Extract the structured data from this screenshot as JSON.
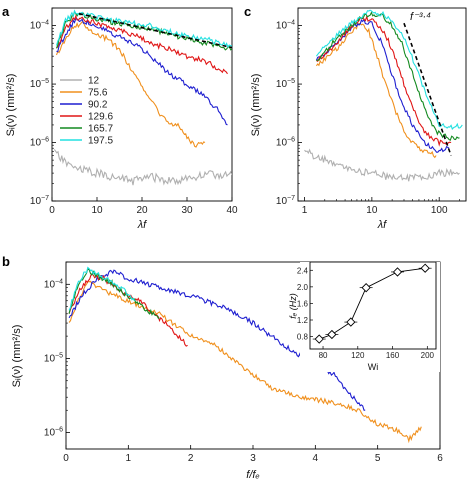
{
  "chart_data": [
    {
      "id": "a",
      "panel_label": "a",
      "type": "line",
      "xscale": "linear",
      "yscale": "log",
      "xlim": [
        0,
        40
      ],
      "ylim": [
        1e-07,
        0.0002
      ],
      "xticks": [
        "0",
        "10",
        "20",
        "30",
        "40"
      ],
      "yticks": [
        "10−7",
        "10−6",
        "10−5",
        "10−4"
      ],
      "xlabel": "λf",
      "ylabel": "Sᵢ(ν) (mm²/s)",
      "legend_position": "left-middle",
      "series": [
        {
          "name": "12",
          "color": "#b0b0b0",
          "points": [
            [
              0.5,
              7e-07
            ],
            [
              3,
              4.5e-07
            ],
            [
              6,
              3.5e-07
            ],
            [
              10,
              3e-07
            ],
            [
              14,
              2.5e-07
            ],
            [
              18,
              2.2e-07
            ],
            [
              22,
              2.6e-07
            ],
            [
              26,
              2.2e-07
            ],
            [
              30,
              2.4e-07
            ],
            [
              34,
              2.8e-07
            ],
            [
              38,
              2.8e-07
            ],
            [
              40,
              2.8e-07
            ]
          ]
        },
        {
          "name": "75.6",
          "color": "#f0901e",
          "points": [
            [
              1,
              3e-05
            ],
            [
              3,
              6e-05
            ],
            [
              5,
              0.0001
            ],
            [
              7,
              0.00011
            ],
            [
              9,
              8e-05
            ],
            [
              12,
              6e-05
            ],
            [
              15,
              4e-05
            ],
            [
              18,
              1.5e-05
            ],
            [
              21,
              7e-06
            ],
            [
              24,
              3e-06
            ],
            [
              26,
              2e-06
            ],
            [
              28,
              2e-06
            ],
            [
              30,
              1.2e-06
            ],
            [
              32,
              9e-07
            ],
            [
              34,
              1e-06
            ]
          ]
        },
        {
          "name": "90.2",
          "color": "#1f1fd0",
          "points": [
            [
              1,
              3.5e-05
            ],
            [
              3,
              7e-05
            ],
            [
              5,
              0.00012
            ],
            [
              7,
              0.00012
            ],
            [
              10,
              0.0001
            ],
            [
              14,
              7e-05
            ],
            [
              18,
              5e-05
            ],
            [
              22,
              3e-05
            ],
            [
              26,
              1.5e-05
            ],
            [
              30,
              1e-05
            ],
            [
              34,
              6e-06
            ],
            [
              37,
              3.5e-06
            ],
            [
              39,
              2e-06
            ]
          ]
        },
        {
          "name": "129.6",
          "color": "#e01616",
          "points": [
            [
              1,
              4e-05
            ],
            [
              3,
              9e-05
            ],
            [
              5,
              0.00014
            ],
            [
              7,
              0.00013
            ],
            [
              10,
              0.00011
            ],
            [
              14,
              9e-05
            ],
            [
              18,
              7e-05
            ],
            [
              22,
              5e-05
            ],
            [
              26,
              4e-05
            ],
            [
              30,
              3e-05
            ],
            [
              34,
              2.5e-05
            ],
            [
              37,
              1.8e-05
            ],
            [
              39,
              1.5e-05
            ]
          ]
        },
        {
          "name": "165.7",
          "color": "#148a20",
          "points": [
            [
              1,
              4e-05
            ],
            [
              3,
              0.00011
            ],
            [
              5,
              0.00016
            ],
            [
              7,
              0.00015
            ],
            [
              10,
              0.00013
            ],
            [
              14,
              0.00011
            ],
            [
              18,
              0.0001
            ],
            [
              22,
              9e-05
            ],
            [
              26,
              7e-05
            ],
            [
              30,
              6e-05
            ],
            [
              34,
              5e-05
            ],
            [
              37,
              4.5e-05
            ],
            [
              40,
              4e-05
            ]
          ]
        },
        {
          "name": "197.5",
          "color": "#22e0e0",
          "points": [
            [
              1,
              4.5e-05
            ],
            [
              3,
              0.00012
            ],
            [
              5,
              0.00017
            ],
            [
              7,
              0.00016
            ],
            [
              10,
              0.00014
            ],
            [
              14,
              0.00012
            ],
            [
              18,
              0.00011
            ],
            [
              22,
              0.0001
            ],
            [
              26,
              8e-05
            ],
            [
              30,
              6.5e-05
            ],
            [
              34,
              6e-05
            ],
            [
              37,
              5e-05
            ],
            [
              40,
              4.5e-05
            ]
          ]
        }
      ],
      "fit_line": {
        "style": "dashed",
        "color": "#000000",
        "points": [
          [
            6,
            0.00016
          ],
          [
            40,
            4.2e-05
          ]
        ]
      }
    },
    {
      "id": "c",
      "panel_label": "c",
      "type": "line",
      "xscale": "log",
      "yscale": "log",
      "xlim": [
        0.8,
        250
      ],
      "ylim": [
        1e-07,
        0.0002
      ],
      "xticks": [
        "1",
        "10",
        "100"
      ],
      "yticks": [
        "10−7",
        "10−6",
        "10−5",
        "10−4"
      ],
      "xlabel": "λf",
      "ylabel": "Sᵢ(ν) (mm²/s)",
      "annotation": "f⁻³·⁴",
      "series": [
        {
          "name": "12",
          "color": "#b0b0b0",
          "points": [
            [
              1,
              7e-07
            ],
            [
              2,
              5e-07
            ],
            [
              5,
              3.5e-07
            ],
            [
              10,
              3e-07
            ],
            [
              20,
              2.5e-07
            ],
            [
              50,
              2.5e-07
            ],
            [
              100,
              3e-07
            ],
            [
              200,
              3e-07
            ]
          ]
        },
        {
          "name": "75.6",
          "color": "#f0901e",
          "points": [
            [
              1.5,
              2e-05
            ],
            [
              3,
              4e-05
            ],
            [
              5,
              8e-05
            ],
            [
              7,
              0.00011
            ],
            [
              9,
              8e-05
            ],
            [
              12,
              3e-05
            ],
            [
              16,
              1e-05
            ],
            [
              20,
              5e-06
            ],
            [
              25,
              2.5e-06
            ],
            [
              30,
              1.5e-06
            ],
            [
              40,
              1e-06
            ],
            [
              60,
              7e-07
            ],
            [
              90,
              6e-07
            ]
          ]
        },
        {
          "name": "90.2",
          "color": "#1f1fd0",
          "points": [
            [
              1.5,
              2.5e-05
            ],
            [
              3,
              5e-05
            ],
            [
              5,
              9e-05
            ],
            [
              7,
              0.00012
            ],
            [
              10,
              0.00011
            ],
            [
              14,
              5e-05
            ],
            [
              18,
              2e-05
            ],
            [
              24,
              8e-06
            ],
            [
              30,
              4e-06
            ],
            [
              40,
              2e-06
            ],
            [
              60,
              1e-06
            ],
            [
              100,
              7e-07
            ],
            [
              140,
              8e-07
            ]
          ]
        },
        {
          "name": "129.6",
          "color": "#e01616",
          "points": [
            [
              1.5,
              2.5e-05
            ],
            [
              3,
              5e-05
            ],
            [
              5,
              0.0001
            ],
            [
              7,
              0.00014
            ],
            [
              11,
              0.00012
            ],
            [
              16,
              7e-05
            ],
            [
              22,
              3e-05
            ],
            [
              30,
              1e-05
            ],
            [
              40,
              4e-06
            ],
            [
              60,
              1.5e-06
            ],
            [
              100,
              1e-06
            ],
            [
              150,
              1e-06
            ]
          ]
        },
        {
          "name": "165.7",
          "color": "#148a20",
          "points": [
            [
              1.5,
              2.5e-05
            ],
            [
              3,
              6e-05
            ],
            [
              6,
              0.00012
            ],
            [
              9,
              0.00016
            ],
            [
              14,
              0.00015
            ],
            [
              20,
              0.0001
            ],
            [
              28,
              5e-05
            ],
            [
              40,
              1.5e-05
            ],
            [
              60,
              4e-06
            ],
            [
              90,
              1.5e-06
            ],
            [
              140,
              1.2e-06
            ],
            [
              200,
              1.2e-06
            ]
          ]
        },
        {
          "name": "197.5",
          "color": "#22e0e0",
          "points": [
            [
              1.5,
              3e-05
            ],
            [
              3,
              7e-05
            ],
            [
              6,
              0.00013
            ],
            [
              9,
              0.00017
            ],
            [
              14,
              0.00016
            ],
            [
              20,
              0.00012
            ],
            [
              30,
              6e-05
            ],
            [
              45,
              2e-05
            ],
            [
              70,
              5e-06
            ],
            [
              100,
              2e-06
            ],
            [
              150,
              1.8e-06
            ],
            [
              220,
              2e-06
            ]
          ]
        }
      ],
      "fit_line": {
        "style": "dashed",
        "color": "#000000",
        "points": [
          [
            30,
            0.00011
          ],
          [
            150,
            6e-07
          ]
        ]
      }
    },
    {
      "id": "b",
      "panel_label": "b",
      "type": "line",
      "xscale": "linear",
      "yscale": "log",
      "xlim": [
        0,
        6
      ],
      "ylim": [
        6e-07,
        0.0002
      ],
      "xticks": [
        "0",
        "1",
        "2",
        "3",
        "4",
        "5",
        "6"
      ],
      "yticks": [
        "10−6",
        "10−5",
        "10−4"
      ],
      "xlabel": "f/fₑ",
      "ylabel": "Sᵢ(ν) (mm²/s)",
      "series": [
        {
          "name": "75.6",
          "color": "#f0901e",
          "points": [
            [
              0.05,
              3e-05
            ],
            [
              0.2,
              6e-05
            ],
            [
              0.35,
              0.00011
            ],
            [
              0.5,
              9e-05
            ],
            [
              1,
              6e-05
            ],
            [
              1.5,
              4e-05
            ],
            [
              2,
              2e-05
            ],
            [
              2.4,
              1.5e-05
            ],
            [
              2.8,
              8e-06
            ],
            [
              3.3,
              4e-06
            ],
            [
              3.8,
              3e-06
            ],
            [
              4.3,
              2.5e-06
            ],
            [
              4.7,
              2e-06
            ],
            [
              5,
              1.3e-06
            ],
            [
              5.3,
              1.1e-06
            ],
            [
              5.5,
              8e-07
            ],
            [
              5.7,
              1.2e-06
            ]
          ]
        },
        {
          "name": "90.2",
          "color": "#1f1fd0",
          "points": [
            [
              0.05,
              3.5e-05
            ],
            [
              0.25,
              7e-05
            ],
            [
              0.5,
              0.00012
            ],
            [
              0.75,
              0.00015
            ],
            [
              1,
              0.00012
            ],
            [
              1.5,
              9e-05
            ],
            [
              2,
              7e-05
            ],
            [
              2.5,
              5e-05
            ],
            [
              3,
              3e-05
            ],
            [
              3.5,
              1.5e-05
            ],
            [
              4,
              8e-06
            ],
            [
              4.3,
              6e-06
            ],
            [
              4.6,
              3e-06
            ],
            [
              4.8,
              2e-06
            ]
          ]
        },
        {
          "name": "129.6",
          "color": "#e01616",
          "points": [
            [
              0.05,
              4e-05
            ],
            [
              0.2,
              8e-05
            ],
            [
              0.4,
              0.00013
            ],
            [
              0.6,
              0.00012
            ],
            [
              0.8,
              9e-05
            ],
            [
              1,
              7e-05
            ],
            [
              1.2,
              6e-05
            ],
            [
              1.4,
              4e-05
            ],
            [
              1.6,
              3e-05
            ],
            [
              1.8,
              2e-05
            ],
            [
              1.95,
              1.5e-05
            ]
          ]
        },
        {
          "name": "165.7",
          "color": "#148a20",
          "points": [
            [
              0.05,
              4e-05
            ],
            [
              0.2,
              0.0001
            ],
            [
              0.35,
              0.00015
            ],
            [
              0.5,
              0.00013
            ],
            [
              0.7,
              0.00011
            ],
            [
              0.9,
              8e-05
            ],
            [
              1.1,
              6e-05
            ],
            [
              1.3,
              4.5e-05
            ],
            [
              1.5,
              3.5e-05
            ]
          ]
        },
        {
          "name": "197.5",
          "color": "#22e0e0",
          "points": [
            [
              0.05,
              4.5e-05
            ],
            [
              0.2,
              0.00011
            ],
            [
              0.35,
              0.00016
            ],
            [
              0.5,
              0.00014
            ],
            [
              0.65,
              0.00012
            ],
            [
              0.8,
              0.0001
            ],
            [
              0.95,
              8e-05
            ],
            [
              1.1,
              6e-05
            ]
          ]
        }
      ]
    },
    {
      "id": "b-inset",
      "type": "scatter",
      "xscale": "linear",
      "yscale": "linear",
      "xlim": [
        65,
        210
      ],
      "ylim": [
        0.5,
        2.6
      ],
      "xticks": [
        "80",
        "120",
        "160",
        "200"
      ],
      "yticks": [
        "0.8",
        "1.2",
        "1.6",
        "2.0",
        "2.4"
      ],
      "xlabel": "Wi",
      "ylabel": "fₑ (Hz)",
      "points": [
        [
          75.6,
          0.74
        ],
        [
          90.2,
          0.85
        ],
        [
          112,
          1.15
        ],
        [
          129.6,
          1.98
        ],
        [
          165.7,
          2.36
        ],
        [
          197.5,
          2.45
        ]
      ],
      "xerr": 4
    }
  ]
}
